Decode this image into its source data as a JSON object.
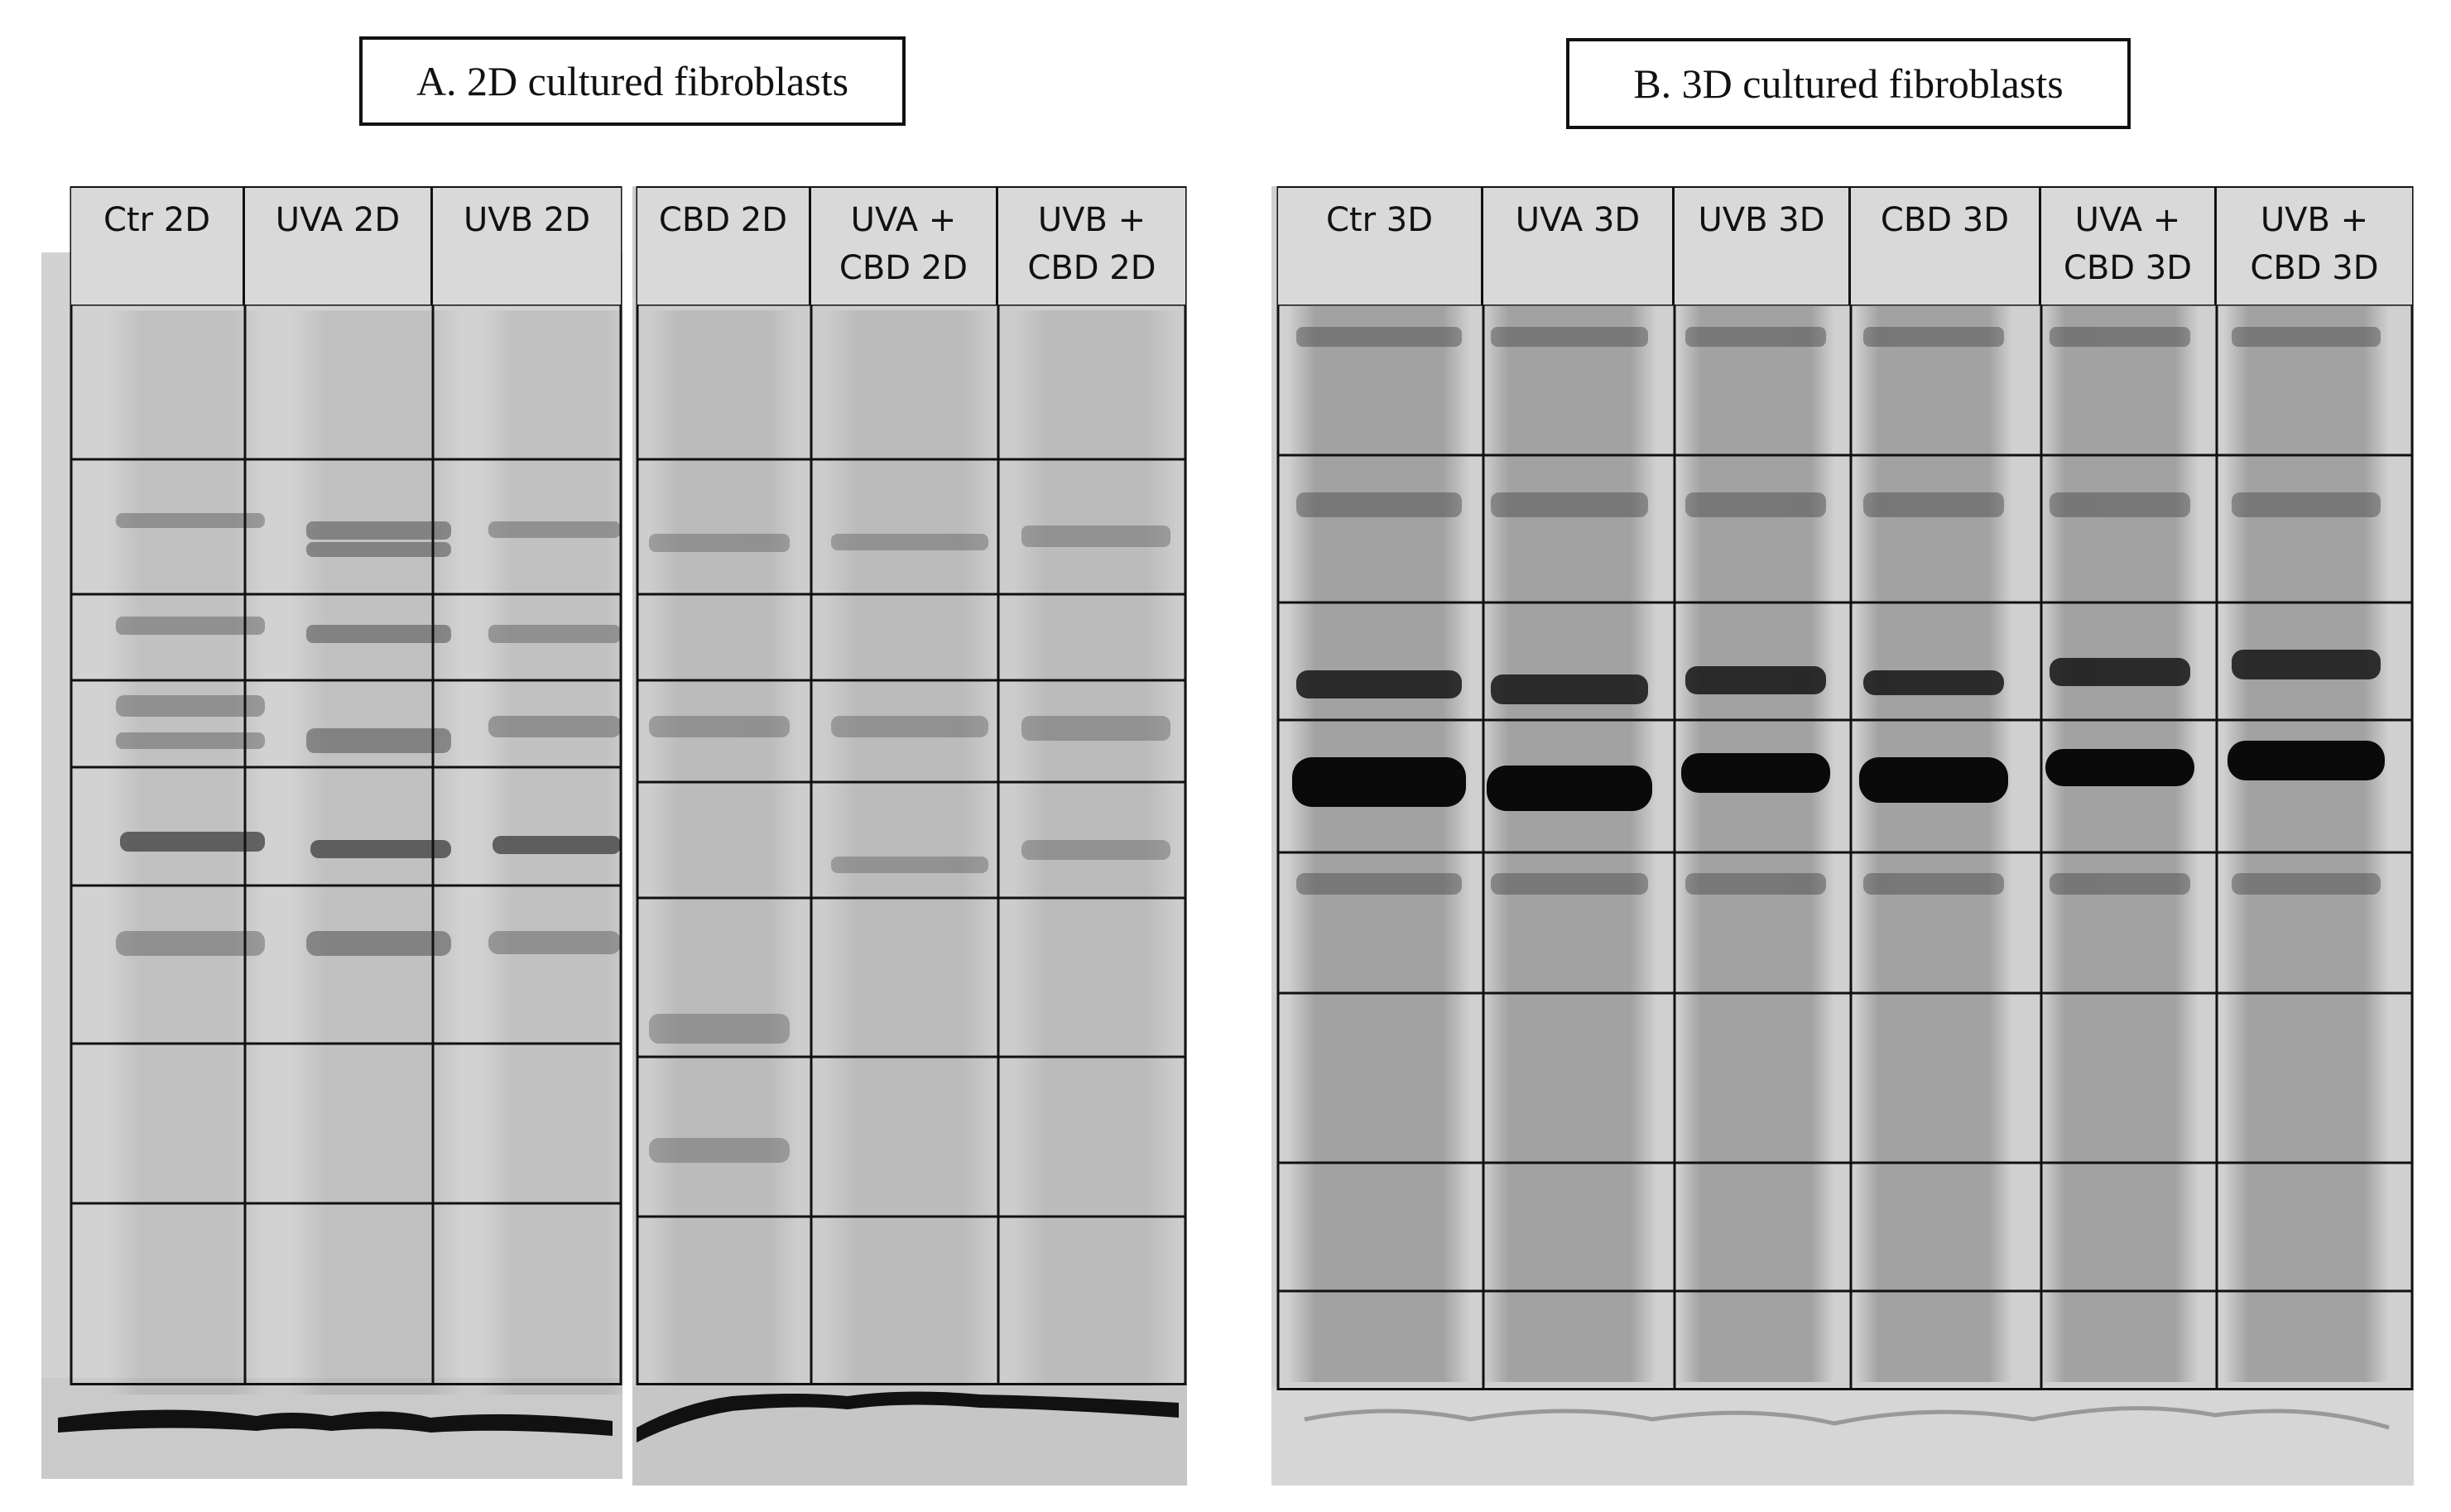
{
  "panels": [
    {
      "id": "A",
      "title": "A. 2D cultured fibroblasts",
      "gels": [
        {
          "lanes": [
            "Ctr 2D",
            "UVA 2D",
            "UVB 2D"
          ]
        },
        {
          "lanes": [
            "CBD 2D",
            "UVA +\nCBD 2D",
            "UVB +\nCBD 2D"
          ]
        }
      ]
    },
    {
      "id": "B",
      "title": "B. 3D cultured fibroblasts",
      "gels": [
        {
          "lanes": [
            "Ctr 3D",
            "UVA 3D",
            "UVB 3D",
            "CBD 3D",
            "UVA +\nCBD 3D",
            "UVB +\nCBD 3D"
          ]
        }
      ]
    }
  ],
  "colors": {
    "gel_background_2d": "#cfcfcf",
    "gel_background_3d": "#d4d4d4",
    "header_fill": "#d9d9d9",
    "grid_line": "#111111",
    "band_dark": "#111111"
  }
}
